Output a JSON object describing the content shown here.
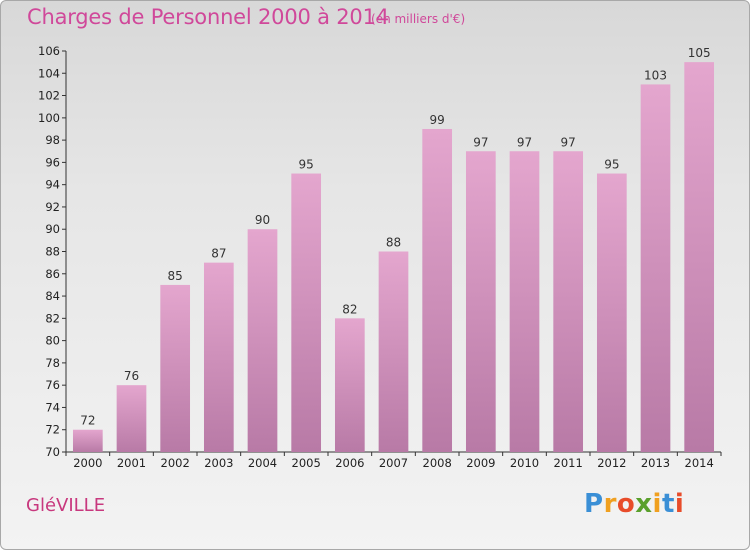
{
  "title": "Charges de Personnel 2000 à 2014",
  "subtitle": "(en milliers d'€)",
  "town": "GléVILLE",
  "logo": {
    "letters": [
      "P",
      "r",
      "o",
      "x",
      "i",
      "t",
      "i"
    ],
    "colors": [
      "#3a8fd6",
      "#f0a020",
      "#e84c2a",
      "#5aa02c",
      "#f0a020",
      "#3a8fd6",
      "#e84c2a"
    ]
  },
  "colors": {
    "bar_top": "#e4a6ce",
    "bar_bottom": "#b87aa6",
    "title": "#d0489a"
  },
  "chart_data": {
    "type": "bar",
    "categories": [
      "2000",
      "2001",
      "2002",
      "2003",
      "2004",
      "2005",
      "2006",
      "2007",
      "2008",
      "2009",
      "2010",
      "2011",
      "2012",
      "2013",
      "2014"
    ],
    "values": [
      72,
      76,
      85,
      87,
      90,
      95,
      82,
      88,
      99,
      97,
      97,
      97,
      95,
      103,
      105
    ],
    "ylim": [
      70,
      106
    ],
    "yticks": [
      70,
      72,
      74,
      76,
      78,
      80,
      82,
      84,
      86,
      88,
      90,
      92,
      94,
      96,
      98,
      100,
      102,
      104,
      106
    ],
    "grid": false
  }
}
